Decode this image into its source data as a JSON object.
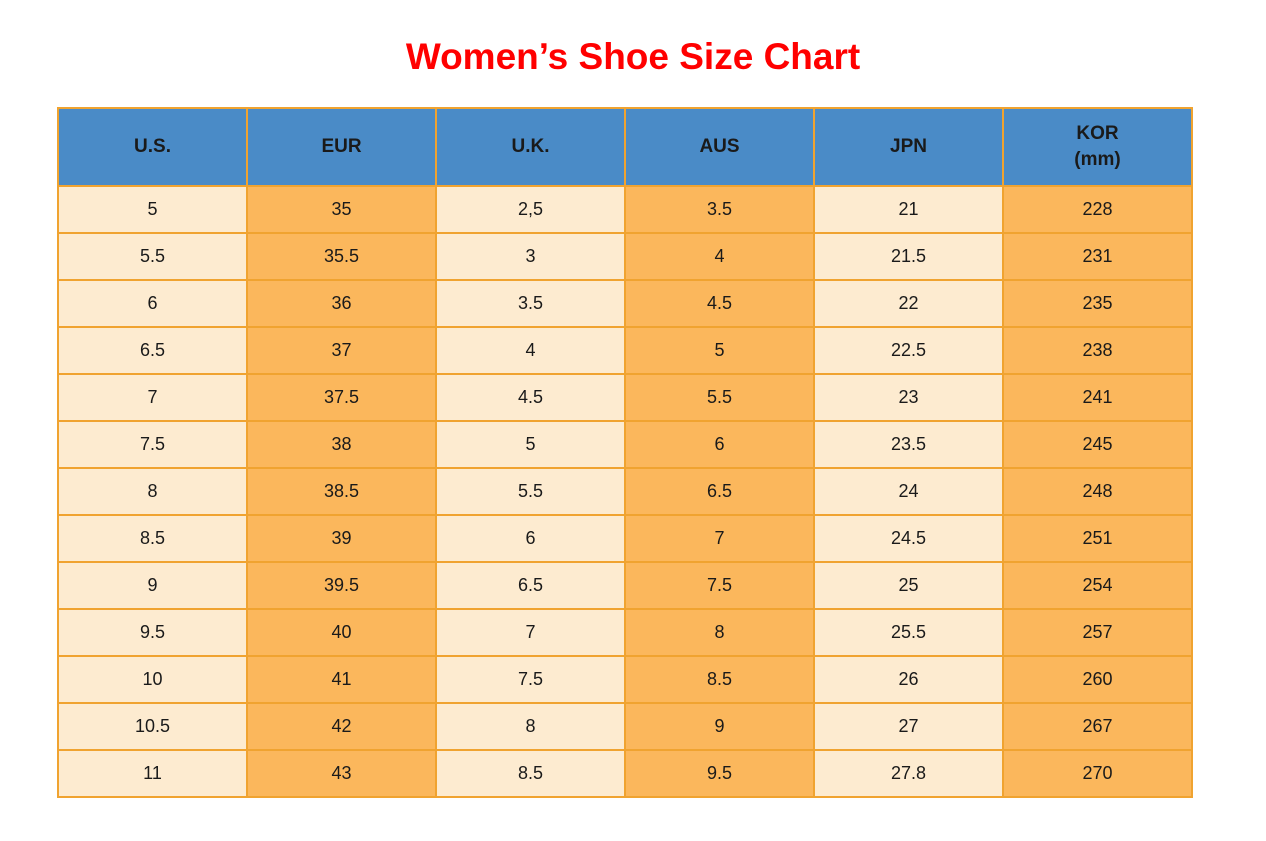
{
  "title": {
    "text": "Women’s Shoe Size Chart"
  },
  "table": {
    "headers": [
      "U.S.",
      "EUR",
      "U.K.",
      "AUS",
      "JPN",
      "KOR\n(mm)"
    ],
    "rows": [
      [
        "5",
        "35",
        "2,5",
        "3.5",
        "21",
        "228"
      ],
      [
        "5.5",
        "35.5",
        "3",
        "4",
        "21.5",
        "231"
      ],
      [
        "6",
        "36",
        "3.5",
        "4.5",
        "22",
        "235"
      ],
      [
        "6.5",
        "37",
        "4",
        "5",
        "22.5",
        "238"
      ],
      [
        "7",
        "37.5",
        "4.5",
        "5.5",
        "23",
        "241"
      ],
      [
        "7.5",
        "38",
        "5",
        "6",
        "23.5",
        "245"
      ],
      [
        "8",
        "38.5",
        "5.5",
        "6.5",
        "24",
        "248"
      ],
      [
        "8.5",
        "39",
        "6",
        "7",
        "24.5",
        "251"
      ],
      [
        "9",
        "39.5",
        "6.5",
        "7.5",
        "25",
        "254"
      ],
      [
        "9.5",
        "40",
        "7",
        "8",
        "25.5",
        "257"
      ],
      [
        "10",
        "41",
        "7.5",
        "8.5",
        "26",
        "260"
      ],
      [
        "10.5",
        "42",
        "8",
        "9",
        "27",
        "267"
      ],
      [
        "11",
        "43",
        "8.5",
        "9.5",
        "27.8",
        "270"
      ]
    ]
  },
  "chart_data": {
    "type": "table",
    "title": "Women’s Shoe Size Chart",
    "columns": [
      "U.S.",
      "EUR",
      "U.K.",
      "AUS",
      "JPN",
      "KOR (mm)"
    ],
    "rows": [
      [
        "5",
        "35",
        "2,5",
        "3.5",
        "21",
        "228"
      ],
      [
        "5.5",
        "35.5",
        "3",
        "4",
        "21.5",
        "231"
      ],
      [
        "6",
        "36",
        "3.5",
        "4.5",
        "22",
        "235"
      ],
      [
        "6.5",
        "37",
        "4",
        "5",
        "22.5",
        "238"
      ],
      [
        "7",
        "37.5",
        "4.5",
        "5.5",
        "23",
        "241"
      ],
      [
        "7.5",
        "38",
        "5",
        "6",
        "23.5",
        "245"
      ],
      [
        "8",
        "38.5",
        "5.5",
        "6.5",
        "24",
        "248"
      ],
      [
        "8.5",
        "39",
        "6",
        "7",
        "24.5",
        "251"
      ],
      [
        "9",
        "39.5",
        "6.5",
        "7.5",
        "25",
        "254"
      ],
      [
        "9.5",
        "40",
        "7",
        "8",
        "25.5",
        "257"
      ],
      [
        "10",
        "41",
        "7.5",
        "8.5",
        "26",
        "260"
      ],
      [
        "10.5",
        "42",
        "8",
        "9",
        "27",
        "267"
      ],
      [
        "11",
        "43",
        "8.5",
        "9.5",
        "27.8",
        "270"
      ]
    ],
    "column_fill_pattern": [
      "cream",
      "orange",
      "cream",
      "orange",
      "cream",
      "orange"
    ],
    "legend_position": "none",
    "grid": true
  },
  "colors": {
    "title": "#FF0000",
    "header_bg": "#4A8BC7",
    "cream": "#FDEBD0",
    "orange": "#FBB75C",
    "border": "#F0A330",
    "text": "#1A1A1A"
  }
}
